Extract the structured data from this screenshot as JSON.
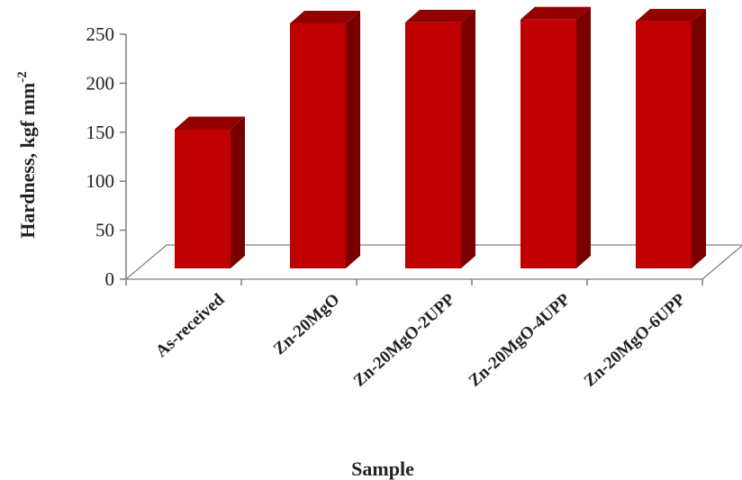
{
  "chart_data": {
    "type": "bar",
    "title": "",
    "xlabel": "Sample",
    "ylabel": "Hardness, kgf mm",
    "ylabel_superscript": "-2",
    "categories": [
      "As-received",
      "Zn-20MgO",
      "Zn-20MgO-2UPP",
      "Zn-20MgO-4UPP",
      "Zn-20MgO-6UPP"
    ],
    "values": [
      142,
      250,
      251,
      254,
      252
    ],
    "ylim": [
      0,
      250
    ],
    "yticks": [
      "0",
      "50",
      "100",
      "150",
      "200",
      "250"
    ],
    "grid": false,
    "legend": "none",
    "style": "3d-column",
    "colors": {
      "front": "#c00000",
      "side": "#7a0000",
      "top": "#930000"
    }
  }
}
